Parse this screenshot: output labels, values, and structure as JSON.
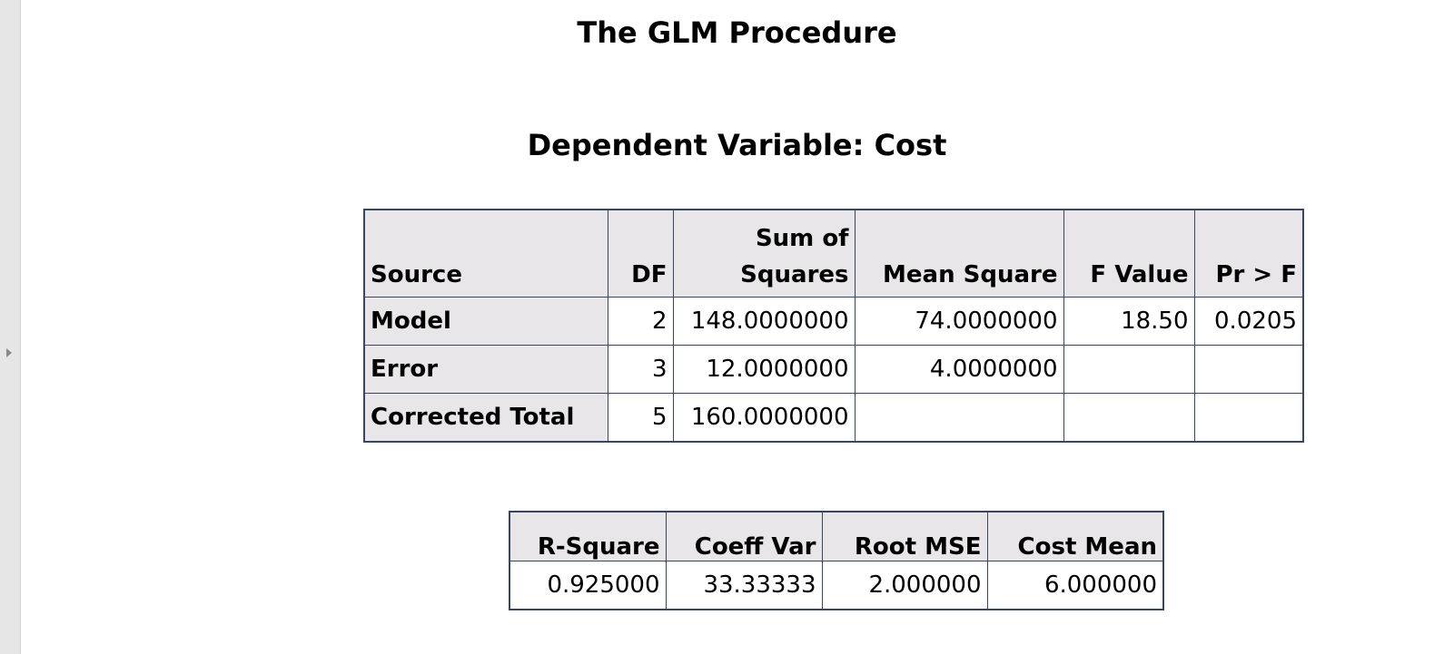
{
  "procedure_title": "The GLM Procedure",
  "dependent_variable_title": "Dependent Variable: Cost",
  "anova": {
    "headers": {
      "source": "Source",
      "df": "DF",
      "ss_line1": "Sum of",
      "ss_line2": "Squares",
      "ms": "Mean Square",
      "f": "F Value",
      "p": "Pr > F"
    },
    "rows": [
      {
        "source": "Model",
        "df": "2",
        "ss": "148.0000000",
        "ms": "74.0000000",
        "f": "18.50",
        "p": "0.0205"
      },
      {
        "source": "Error",
        "df": "3",
        "ss": "12.0000000",
        "ms": "4.0000000",
        "f": "",
        "p": ""
      },
      {
        "source": "Corrected Total",
        "df": "5",
        "ss": "160.0000000",
        "ms": "",
        "f": "",
        "p": ""
      }
    ]
  },
  "fit": {
    "headers": {
      "r2": "R-Square",
      "cv": "Coeff Var",
      "rmse": "Root MSE",
      "mean": "Cost Mean"
    },
    "values": {
      "r2": "0.925000",
      "cv": "33.33333",
      "rmse": "2.000000",
      "mean": "6.000000"
    }
  },
  "colors": {
    "header_bg": "#e8e6e8",
    "border": "#3a4660",
    "side_strip": "#e6e6e6"
  },
  "icons": {
    "side_toggle": "caret-right-icon"
  }
}
